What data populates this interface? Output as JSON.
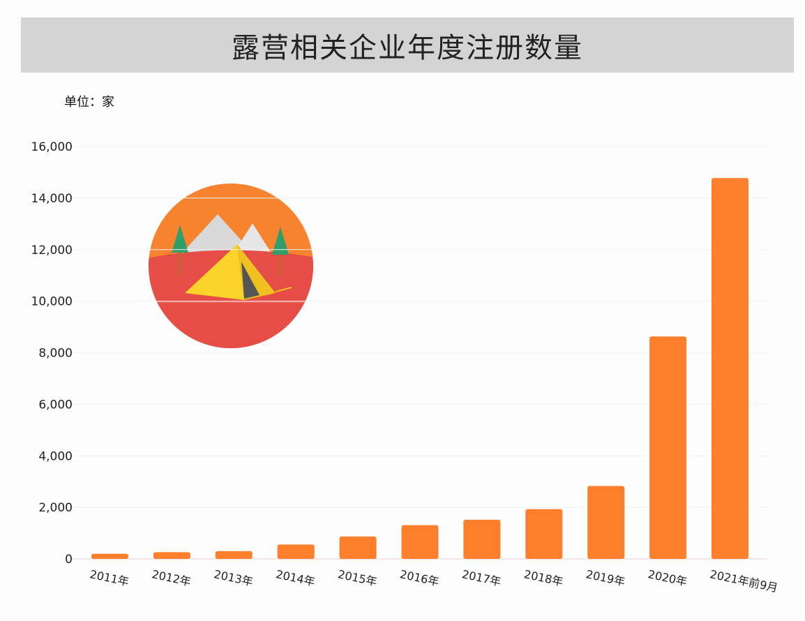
{
  "chart_data": {
    "type": "bar",
    "title": "露营相关企业年度注册数量",
    "unit_label": "单位：家",
    "categories": [
      "2011年",
      "2012年",
      "2013年",
      "2014年",
      "2015年",
      "2016年",
      "2017年",
      "2018年",
      "2019年",
      "2020年",
      "2021年前9月"
    ],
    "values": [
      200,
      260,
      300,
      560,
      870,
      1310,
      1520,
      1930,
      2830,
      8630,
      14780
    ],
    "ylim": [
      0,
      16000
    ],
    "yticks": [
      0,
      2000,
      4000,
      6000,
      8000,
      10000,
      12000,
      14000,
      16000
    ],
    "ytick_labels": [
      "0",
      "2,000",
      "4,000",
      "6,000",
      "8,000",
      "10,000",
      "12,000",
      "14,000",
      "16,000"
    ],
    "grid": true,
    "bar_color": "#fd7f2b",
    "decoration": "camping-tent-illustration"
  }
}
